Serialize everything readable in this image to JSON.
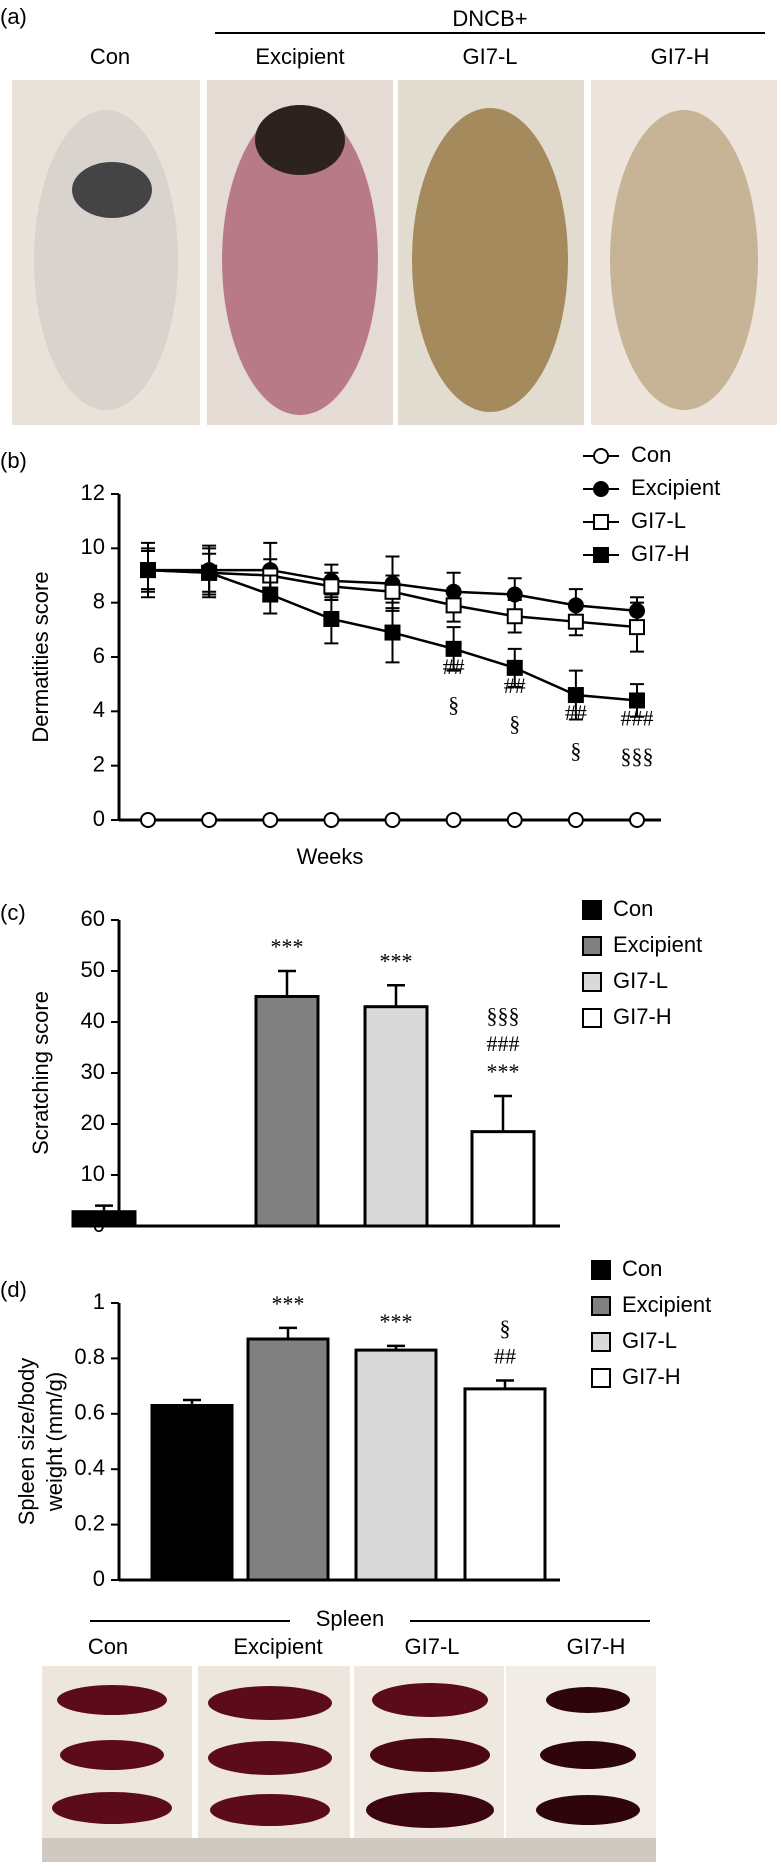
{
  "panel_a": {
    "label": "(a)",
    "group": "DNCB+",
    "groups": [
      "Con",
      "Excipient",
      "GI7-L",
      "GI7-H"
    ]
  },
  "chart_data": [
    {
      "type": "line",
      "panel_label": "(b)",
      "xlabel": "Weeks",
      "ylabel": "Dermatities score",
      "categories": [
        null,
        null,
        null,
        null,
        null,
        null,
        null,
        null,
        null
      ],
      "series": [
        {
          "name": "Con",
          "color": "#000000",
          "marker": "open-circle",
          "values": [
            0,
            0,
            0,
            0,
            0,
            0,
            0,
            0,
            0
          ]
        },
        {
          "name": "Excipient",
          "color": "#000000",
          "marker": "filled-circle",
          "values": [
            9.2,
            9.2,
            9.2,
            8.8,
            8.7,
            8.4,
            8.3,
            7.9,
            7.7
          ],
          "errors": [
            0.8,
            0.9,
            1.0,
            0.6,
            1.0,
            0.7,
            0.6,
            0.6,
            0.5
          ]
        },
        {
          "name": "GI7-L",
          "color": "#000000",
          "marker": "open-square",
          "values": [
            9.2,
            9.1,
            9.0,
            8.6,
            8.4,
            7.9,
            7.5,
            7.3,
            7.1
          ],
          "errors": [
            0.7,
            0.7,
            0.6,
            0.5,
            0.6,
            0.6,
            0.6,
            0.5,
            0.9
          ]
        },
        {
          "name": "GI7-H",
          "color": "#000000",
          "marker": "filled-square",
          "values": [
            9.2,
            9.1,
            8.3,
            7.4,
            6.9,
            6.3,
            5.6,
            4.6,
            4.4
          ],
          "errors": [
            1.0,
            0.9,
            0.7,
            0.9,
            1.1,
            0.8,
            0.7,
            0.9,
            0.6
          ]
        }
      ],
      "significance": [
        [],
        [],
        [],
        [],
        [],
        [
          "##",
          "§"
        ],
        [
          "##",
          "§"
        ],
        [
          "##",
          "§"
        ],
        [
          "###",
          "§§§"
        ]
      ],
      "ylim": [
        0,
        12
      ],
      "yticks": [
        0,
        2,
        4,
        6,
        8,
        10,
        12
      ]
    },
    {
      "type": "bar",
      "panel_label": "(c)",
      "ylabel": "Scratching score",
      "categories": [
        "Con",
        "Excipient",
        "GI7-L",
        "GI7-H"
      ],
      "values": [
        2.8,
        45,
        43,
        18.5
      ],
      "errors": [
        1.2,
        5,
        4.2,
        7
      ],
      "colors": [
        "#000000",
        "#808080",
        "#d9d9d9",
        "#ffffff"
      ],
      "significance": [
        [],
        [
          "***"
        ],
        [
          "***"
        ],
        [
          "§§§",
          "###",
          "***"
        ]
      ],
      "ylim": [
        0,
        60
      ],
      "yticks": [
        0,
        10,
        20,
        30,
        40,
        50,
        60
      ]
    },
    {
      "type": "bar",
      "panel_label": "(d)",
      "ylabel": [
        "Spleen size/body",
        "weight (mm/g)"
      ],
      "categories": [
        "Con",
        "Excipient",
        "GI7-L",
        "GI7-H"
      ],
      "values": [
        0.63,
        0.87,
        0.83,
        0.69
      ],
      "errors": [
        0.02,
        0.04,
        0.015,
        0.03
      ],
      "colors": [
        "#000000",
        "#808080",
        "#d9d9d9",
        "#ffffff"
      ],
      "significance": [
        [],
        [
          "***"
        ],
        [
          "***"
        ],
        [
          "§",
          "##"
        ]
      ],
      "ylim": [
        0,
        1
      ],
      "yticks": [
        0,
        0.2,
        0.4,
        0.6,
        0.8,
        1
      ]
    }
  ],
  "spleen": {
    "title": "Spleen",
    "groups": [
      "Con",
      "Excipient",
      "GI7-L",
      "GI7-H"
    ]
  }
}
